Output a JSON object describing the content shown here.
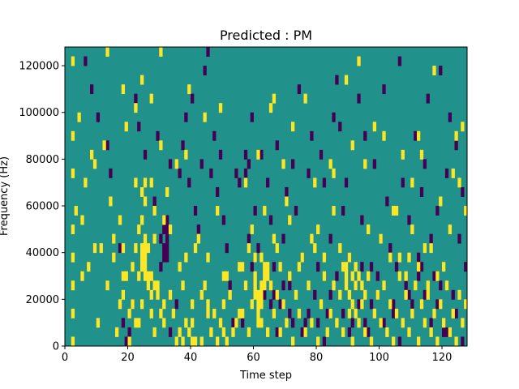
{
  "chart_data": {
    "type": "heatmap",
    "title": "Predicted : PM",
    "xlabel": "Time step",
    "ylabel": "Frequency (Hz)",
    "xlim": [
      0,
      128
    ],
    "ylim": [
      0,
      128000
    ],
    "x_ticks": [
      {
        "value": 0,
        "label": "0"
      },
      {
        "value": 20,
        "label": "20"
      },
      {
        "value": 40,
        "label": "40"
      },
      {
        "value": 60,
        "label": "60"
      },
      {
        "value": 80,
        "label": "80"
      },
      {
        "value": 100,
        "label": "100"
      },
      {
        "value": 120,
        "label": "120"
      }
    ],
    "y_ticks": [
      {
        "value": 0,
        "label": "0"
      },
      {
        "value": 20000,
        "label": "20000"
      },
      {
        "value": 40000,
        "label": "40000"
      },
      {
        "value": 60000,
        "label": "60000"
      },
      {
        "value": 80000,
        "label": "80000"
      },
      {
        "value": 100000,
        "label": "100000"
      },
      {
        "value": 120000,
        "label": "120000"
      }
    ],
    "colormap": "viridis",
    "colors": {
      "low": "#440154",
      "mid": "#21918c",
      "high": "#fde725"
    },
    "background_level": "mid",
    "cell": {
      "time_width": 1,
      "freq_height": 4000
    },
    "high_cells": [
      [
        2,
        0
      ],
      [
        2,
        3
      ],
      [
        2,
        6
      ],
      [
        2,
        9
      ],
      [
        2,
        12
      ],
      [
        2,
        18
      ],
      [
        2,
        22
      ],
      [
        2,
        30
      ],
      [
        4,
        24
      ],
      [
        5,
        13
      ],
      [
        10,
        2
      ],
      [
        11,
        10
      ],
      [
        12,
        21
      ],
      [
        13,
        6
      ],
      [
        13,
        31
      ],
      [
        15,
        9
      ],
      [
        16,
        1
      ],
      [
        17,
        4
      ],
      [
        17,
        13
      ],
      [
        18,
        5
      ],
      [
        18,
        27
      ],
      [
        19,
        7
      ],
      [
        20,
        0
      ],
      [
        21,
        4
      ],
      [
        22,
        2
      ],
      [
        22,
        10
      ],
      [
        22,
        17
      ],
      [
        22,
        25
      ],
      [
        23,
        2
      ],
      [
        23,
        7
      ],
      [
        24,
        4
      ],
      [
        24,
        8
      ],
      [
        24,
        9
      ],
      [
        24,
        10
      ],
      [
        24,
        13
      ],
      [
        24,
        16
      ],
      [
        24,
        28
      ],
      [
        25,
        7
      ],
      [
        25,
        8
      ],
      [
        25,
        9
      ],
      [
        25,
        10
      ],
      [
        25,
        15
      ],
      [
        25,
        17
      ],
      [
        26,
        6
      ],
      [
        27,
        3
      ],
      [
        27,
        7
      ],
      [
        27,
        26
      ],
      [
        28,
        1
      ],
      [
        28,
        11
      ],
      [
        28,
        14
      ],
      [
        29,
        6
      ],
      [
        30,
        3
      ],
      [
        30,
        31
      ],
      [
        31,
        2
      ],
      [
        31,
        4
      ],
      [
        31,
        13
      ],
      [
        32,
        16
      ],
      [
        33,
        5
      ],
      [
        34,
        3
      ],
      [
        35,
        0
      ],
      [
        36,
        1
      ],
      [
        36,
        8
      ],
      [
        37,
        0
      ],
      [
        37,
        6
      ],
      [
        38,
        2
      ],
      [
        38,
        9
      ],
      [
        38,
        20
      ],
      [
        39,
        1
      ],
      [
        39,
        27
      ],
      [
        40,
        0
      ],
      [
        40,
        4
      ],
      [
        41,
        0
      ],
      [
        42,
        11
      ],
      [
        43,
        0
      ],
      [
        43,
        5
      ],
      [
        44,
        6
      ],
      [
        45,
        4
      ],
      [
        46,
        1
      ],
      [
        47,
        3
      ],
      [
        48,
        0
      ],
      [
        49,
        2
      ],
      [
        49,
        25
      ],
      [
        50,
        1
      ],
      [
        50,
        7
      ],
      [
        51,
        0
      ],
      [
        52,
        5
      ],
      [
        53,
        1
      ],
      [
        54,
        2
      ],
      [
        55,
        8
      ],
      [
        56,
        3
      ],
      [
        57,
        6
      ],
      [
        58,
        1
      ],
      [
        58,
        10
      ],
      [
        59,
        4
      ],
      [
        60,
        7
      ],
      [
        60,
        9
      ],
      [
        61,
        2
      ],
      [
        61,
        3
      ],
      [
        61,
        20
      ],
      [
        62,
        2
      ],
      [
        62,
        4
      ],
      [
        62,
        9
      ],
      [
        63,
        7
      ],
      [
        64,
        1
      ],
      [
        65,
        6
      ],
      [
        65,
        25
      ],
      [
        66,
        3
      ],
      [
        66,
        11
      ],
      [
        67,
        5
      ],
      [
        68,
        1
      ],
      [
        68,
        8
      ],
      [
        69,
        4
      ],
      [
        70,
        2
      ],
      [
        70,
        15
      ],
      [
        71,
        7
      ],
      [
        72,
        0
      ],
      [
        73,
        5
      ],
      [
        74,
        3
      ],
      [
        75,
        9
      ],
      [
        76,
        1
      ],
      [
        77,
        6
      ],
      [
        78,
        2
      ],
      [
        79,
        10
      ],
      [
        80,
        0
      ],
      [
        80,
        12
      ],
      [
        81,
        4
      ],
      [
        82,
        7
      ],
      [
        83,
        1
      ],
      [
        84,
        3
      ],
      [
        85,
        6
      ],
      [
        85,
        18
      ],
      [
        86,
        2
      ],
      [
        87,
        5
      ],
      [
        88,
        1
      ],
      [
        89,
        8
      ],
      [
        89,
        28
      ],
      [
        90,
        3
      ],
      [
        91,
        0
      ],
      [
        92,
        6
      ],
      [
        93,
        2
      ],
      [
        93,
        30
      ],
      [
        94,
        4
      ],
      [
        95,
        1
      ],
      [
        96,
        7
      ],
      [
        97,
        0
      ],
      [
        98,
        3
      ],
      [
        99,
        5
      ],
      [
        100,
        2
      ],
      [
        101,
        6
      ],
      [
        102,
        1
      ],
      [
        103,
        4
      ],
      [
        104,
        0
      ],
      [
        105,
        3
      ],
      [
        106,
        7
      ],
      [
        107,
        2
      ],
      [
        107,
        20
      ],
      [
        108,
        5
      ],
      [
        109,
        1
      ],
      [
        110,
        3
      ],
      [
        111,
        6
      ],
      [
        112,
        0
      ],
      [
        112,
        22
      ],
      [
        113,
        4
      ],
      [
        114,
        2
      ],
      [
        115,
        5
      ],
      [
        116,
        1
      ],
      [
        117,
        3
      ],
      [
        117,
        29
      ],
      [
        118,
        0
      ],
      [
        119,
        4
      ],
      [
        120,
        2
      ],
      [
        121,
        6
      ],
      [
        122,
        1
      ],
      [
        122,
        12
      ],
      [
        123,
        3
      ],
      [
        124,
        0
      ],
      [
        125,
        5
      ],
      [
        126,
        2
      ],
      [
        127,
        4
      ],
      [
        18,
        10
      ],
      [
        20,
        3
      ],
      [
        21,
        8
      ],
      [
        23,
        12
      ],
      [
        25,
        11
      ],
      [
        26,
        10
      ],
      [
        26,
        7
      ],
      [
        27,
        5
      ],
      [
        28,
        6
      ],
      [
        29,
        5
      ],
      [
        40,
        2
      ],
      [
        45,
        3
      ],
      [
        50,
        4
      ],
      [
        55,
        3
      ],
      [
        60,
        5
      ],
      [
        60,
        6
      ],
      [
        61,
        4
      ],
      [
        61,
        5
      ],
      [
        62,
        5
      ],
      [
        62,
        6
      ],
      [
        63,
        6
      ],
      [
        63,
        8
      ],
      [
        64,
        7
      ],
      [
        64,
        8
      ],
      [
        88,
        8
      ],
      [
        89,
        7
      ],
      [
        89,
        6
      ],
      [
        90,
        5
      ],
      [
        90,
        9
      ],
      [
        91,
        7
      ],
      [
        91,
        4
      ],
      [
        92,
        8
      ],
      [
        92,
        3
      ],
      [
        93,
        7
      ],
      [
        94,
        6
      ],
      [
        95,
        5
      ],
      [
        106,
        9
      ],
      [
        108,
        7
      ],
      [
        109,
        9
      ],
      [
        112,
        8
      ],
      [
        114,
        10
      ],
      [
        115,
        6
      ],
      [
        118,
        7
      ],
      [
        3,
        14
      ],
      [
        6,
        17
      ],
      [
        8,
        20
      ],
      [
        9,
        19
      ],
      [
        14,
        15
      ],
      [
        19,
        23
      ],
      [
        27,
        17
      ],
      [
        30,
        21
      ],
      [
        35,
        19
      ],
      [
        44,
        24
      ],
      [
        48,
        14
      ],
      [
        57,
        17
      ],
      [
        66,
        26
      ],
      [
        69,
        19
      ],
      [
        72,
        23
      ],
      [
        76,
        26
      ],
      [
        79,
        17
      ],
      [
        84,
        19
      ],
      [
        91,
        21
      ],
      [
        95,
        19
      ],
      [
        98,
        23
      ],
      [
        101,
        22
      ],
      [
        105,
        14
      ],
      [
        110,
        17
      ],
      [
        113,
        20
      ],
      [
        119,
        15
      ],
      [
        123,
        18
      ],
      [
        124,
        22
      ],
      [
        125,
        17
      ],
      [
        126,
        23
      ],
      [
        127,
        14
      ],
      [
        5,
        7
      ],
      [
        7,
        8
      ],
      [
        9,
        10
      ],
      [
        15,
        11
      ],
      [
        18,
        7
      ],
      [
        33,
        12
      ],
      [
        41,
        10
      ],
      [
        45,
        9
      ],
      [
        51,
        7
      ],
      [
        56,
        8
      ],
      [
        59,
        12
      ],
      [
        63,
        14
      ],
      [
        67,
        10
      ],
      [
        71,
        13
      ],
      [
        74,
        8
      ],
      [
        78,
        11
      ],
      [
        82,
        9
      ],
      [
        85,
        14
      ],
      [
        87,
        10
      ],
      [
        96,
        12
      ],
      [
        100,
        11
      ],
      [
        103,
        9
      ],
      [
        104,
        14
      ],
      [
        110,
        12
      ],
      [
        116,
        10
      ],
      [
        120,
        8
      ]
    ],
    "low_cells": [
      [
        6,
        30
      ],
      [
        8,
        27
      ],
      [
        10,
        24
      ],
      [
        13,
        21
      ],
      [
        14,
        18
      ],
      [
        17,
        10
      ],
      [
        18,
        2
      ],
      [
        19,
        0
      ],
      [
        20,
        1
      ],
      [
        21,
        4
      ],
      [
        22,
        26
      ],
      [
        23,
        23
      ],
      [
        25,
        20
      ],
      [
        28,
        15
      ],
      [
        29,
        22
      ],
      [
        30,
        11
      ],
      [
        30,
        8
      ],
      [
        31,
        9
      ],
      [
        31,
        10
      ],
      [
        31,
        12
      ],
      [
        31,
        13
      ],
      [
        32,
        9
      ],
      [
        32,
        10
      ],
      [
        32,
        11
      ],
      [
        32,
        12
      ],
      [
        32,
        13
      ],
      [
        33,
        1
      ],
      [
        33,
        19
      ],
      [
        35,
        4
      ],
      [
        36,
        18
      ],
      [
        37,
        21
      ],
      [
        38,
        24
      ],
      [
        39,
        17
      ],
      [
        40,
        26
      ],
      [
        41,
        14
      ],
      [
        42,
        12
      ],
      [
        43,
        19
      ],
      [
        44,
        29
      ],
      [
        45,
        31
      ],
      [
        46,
        18
      ],
      [
        47,
        22
      ],
      [
        48,
        16
      ],
      [
        49,
        20
      ],
      [
        50,
        13
      ],
      [
        51,
        10
      ],
      [
        52,
        6
      ],
      [
        53,
        2
      ],
      [
        54,
        18
      ],
      [
        55,
        17
      ],
      [
        56,
        8
      ],
      [
        57,
        20
      ],
      [
        58,
        11
      ],
      [
        59,
        24
      ],
      [
        60,
        14
      ],
      [
        62,
        20
      ],
      [
        64,
        17
      ],
      [
        65,
        13
      ],
      [
        66,
        8
      ],
      [
        67,
        21
      ],
      [
        68,
        4
      ],
      [
        69,
        11
      ],
      [
        70,
        16
      ],
      [
        71,
        6
      ],
      [
        72,
        19
      ],
      [
        73,
        14
      ],
      [
        74,
        27
      ],
      [
        75,
        9
      ],
      [
        76,
        2
      ],
      [
        77,
        18
      ],
      [
        78,
        22
      ],
      [
        79,
        5
      ],
      [
        80,
        8
      ],
      [
        81,
        20
      ],
      [
        82,
        17
      ],
      [
        83,
        3
      ],
      [
        84,
        11
      ],
      [
        85,
        24
      ],
      [
        86,
        28
      ],
      [
        87,
        23
      ],
      [
        88,
        14
      ],
      [
        89,
        17
      ],
      [
        90,
        9
      ],
      [
        91,
        2
      ],
      [
        92,
        6
      ],
      [
        93,
        26
      ],
      [
        94,
        13
      ],
      [
        95,
        22
      ],
      [
        96,
        1
      ],
      [
        97,
        8
      ],
      [
        98,
        19
      ],
      [
        99,
        5
      ],
      [
        100,
        11
      ],
      [
        101,
        27
      ],
      [
        102,
        15
      ],
      [
        103,
        10
      ],
      [
        104,
        3
      ],
      [
        105,
        8
      ],
      [
        106,
        30
      ],
      [
        107,
        17
      ],
      [
        108,
        6
      ],
      [
        109,
        13
      ],
      [
        110,
        4
      ],
      [
        111,
        22
      ],
      [
        112,
        9
      ],
      [
        113,
        16
      ],
      [
        114,
        19
      ],
      [
        115,
        26
      ],
      [
        116,
        11
      ],
      [
        117,
        7
      ],
      [
        118,
        14
      ],
      [
        119,
        29
      ],
      [
        120,
        1
      ],
      [
        121,
        18
      ],
      [
        122,
        24
      ],
      [
        123,
        5
      ],
      [
        124,
        21
      ],
      [
        125,
        11
      ],
      [
        126,
        16
      ],
      [
        127,
        8
      ],
      [
        57,
        18
      ],
      [
        58,
        19
      ],
      [
        59,
        8
      ],
      [
        60,
        9
      ],
      [
        61,
        10
      ],
      [
        56,
        2
      ],
      [
        63,
        5
      ],
      [
        65,
        4
      ],
      [
        66,
        5
      ],
      [
        67,
        1
      ],
      [
        69,
        6
      ],
      [
        71,
        3
      ],
      [
        72,
        2
      ],
      [
        75,
        1
      ],
      [
        77,
        3
      ],
      [
        80,
        2
      ],
      [
        82,
        0
      ],
      [
        84,
        5
      ],
      [
        86,
        7
      ],
      [
        88,
        3
      ],
      [
        90,
        1
      ],
      [
        93,
        4
      ],
      [
        94,
        8
      ],
      [
        95,
        2
      ],
      [
        97,
        4
      ],
      [
        99,
        7
      ],
      [
        101,
        2
      ],
      [
        104,
        4
      ],
      [
        106,
        0
      ],
      [
        109,
        5
      ],
      [
        112,
        7
      ],
      [
        113,
        8
      ],
      [
        114,
        5
      ],
      [
        116,
        2
      ],
      [
        118,
        4
      ],
      [
        119,
        6
      ],
      [
        121,
        1
      ],
      [
        124,
        3
      ],
      [
        126,
        0
      ]
    ]
  }
}
